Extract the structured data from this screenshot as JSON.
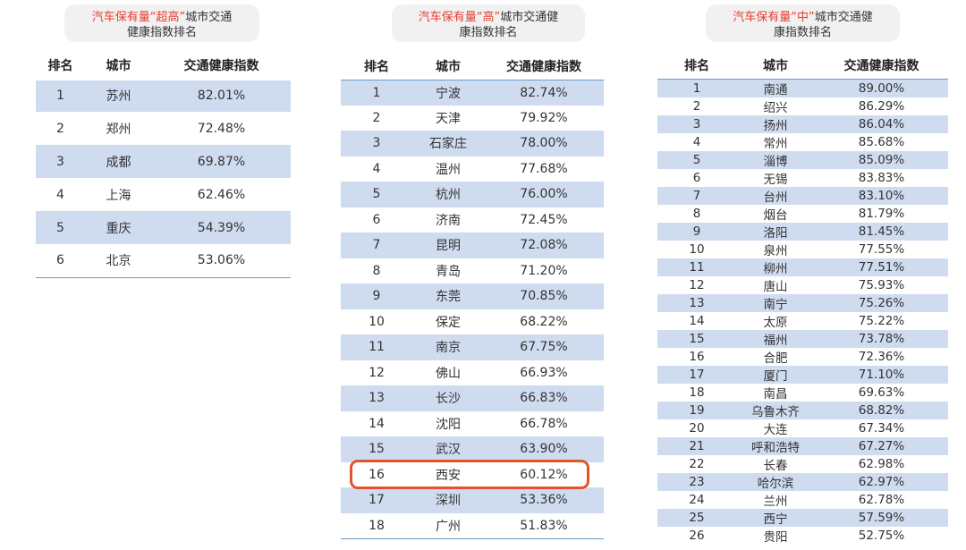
{
  "panels": [
    {
      "title_red": "汽车保有量“超高”",
      "title_rest": "城市交通",
      "title_line2": "健康指数排名",
      "headers": [
        "排名",
        "城市",
        "交通健康指数"
      ],
      "rows": [
        [
          "1",
          "苏州",
          "82.01%"
        ],
        [
          "2",
          "郑州",
          "72.48%"
        ],
        [
          "3",
          "成都",
          "69.87%"
        ],
        [
          "4",
          "上海",
          "62.46%"
        ],
        [
          "5",
          "重庆",
          "54.39%"
        ],
        [
          "6",
          "北京",
          "53.06%"
        ]
      ]
    },
    {
      "title_red": "汽车保有量“高”",
      "title_rest": "城市交通健",
      "title_line2": "康指数排名",
      "headers": [
        "排名",
        "城市",
        "交通健康指数"
      ],
      "rows": [
        [
          "1",
          "宁波",
          "82.74%"
        ],
        [
          "2",
          "天津",
          "79.92%"
        ],
        [
          "3",
          "石家庄",
          "78.00%"
        ],
        [
          "4",
          "温州",
          "77.68%"
        ],
        [
          "5",
          "杭州",
          "76.00%"
        ],
        [
          "6",
          "济南",
          "72.45%"
        ],
        [
          "7",
          "昆明",
          "72.08%"
        ],
        [
          "8",
          "青岛",
          "71.20%"
        ],
        [
          "9",
          "东莞",
          "70.85%"
        ],
        [
          "10",
          "保定",
          "68.22%"
        ],
        [
          "11",
          "南京",
          "67.75%"
        ],
        [
          "12",
          "佛山",
          "66.93%"
        ],
        [
          "13",
          "长沙",
          "66.83%"
        ],
        [
          "14",
          "沈阳",
          "66.78%"
        ],
        [
          "15",
          "武汉",
          "63.90%"
        ],
        [
          "16",
          "西安",
          "60.12%"
        ],
        [
          "17",
          "深圳",
          "53.36%"
        ],
        [
          "18",
          "广州",
          "51.83%"
        ]
      ]
    },
    {
      "title_red": "汽车保有量“中”",
      "title_rest": "城市交通健",
      "title_line2": "康指数排名",
      "headers": [
        "排名",
        "城市",
        "交通健康指数"
      ],
      "rows": [
        [
          "1",
          "南通",
          "89.00%"
        ],
        [
          "2",
          "绍兴",
          "86.29%"
        ],
        [
          "3",
          "扬州",
          "86.04%"
        ],
        [
          "4",
          "常州",
          "85.68%"
        ],
        [
          "5",
          "淄博",
          "85.09%"
        ],
        [
          "6",
          "无锡",
          "83.83%"
        ],
        [
          "7",
          "台州",
          "83.10%"
        ],
        [
          "8",
          "烟台",
          "81.79%"
        ],
        [
          "9",
          "洛阳",
          "81.45%"
        ],
        [
          "10",
          "泉州",
          "77.55%"
        ],
        [
          "11",
          "柳州",
          "77.51%"
        ],
        [
          "12",
          "唐山",
          "75.93%"
        ],
        [
          "13",
          "南宁",
          "75.26%"
        ],
        [
          "14",
          "太原",
          "75.22%"
        ],
        [
          "15",
          "福州",
          "73.78%"
        ],
        [
          "16",
          "合肥",
          "72.36%"
        ],
        [
          "17",
          "厦门",
          "71.10%"
        ],
        [
          "18",
          "南昌",
          "69.63%"
        ],
        [
          "19",
          "乌鲁木齐",
          "68.82%"
        ],
        [
          "20",
          "大连",
          "67.34%"
        ],
        [
          "21",
          "呼和浩特",
          "67.27%"
        ],
        [
          "22",
          "长春",
          "62.98%"
        ],
        [
          "23",
          "哈尔滨",
          "62.97%"
        ],
        [
          "24",
          "兰州",
          "62.78%"
        ],
        [
          "25",
          "西宁",
          "57.59%"
        ],
        [
          "26",
          "贵阳",
          "52.75%"
        ]
      ]
    }
  ],
  "highlight": {
    "panel": 1,
    "row": 15
  }
}
